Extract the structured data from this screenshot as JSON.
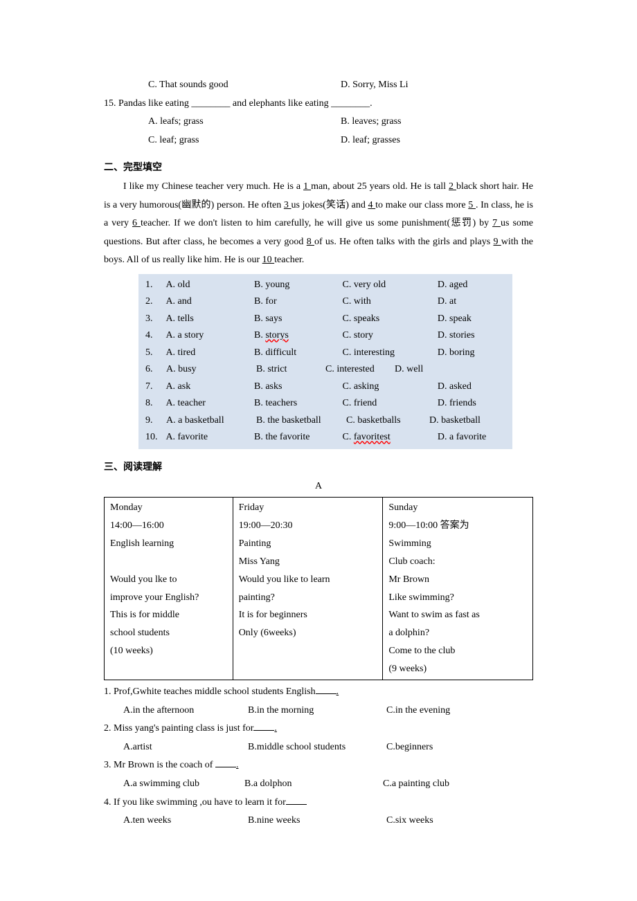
{
  "q14": {
    "c": "C. That sounds good",
    "d": "D. Sorry, Miss Li"
  },
  "q15": {
    "stem": "15. Pandas like eating ________ and elephants like eating ________.",
    "a": "A. leafs; grass",
    "b": "B. leaves; grass",
    "c": "C. leaf; grass",
    "d": "D. leaf; grasses"
  },
  "section2_title": "二、完型填空",
  "cloze_passage": {
    "p1": "I like my Chinese teacher very much. He is a ",
    "b1": "  1  ",
    "p2": " man, about 25 years old. He is tall ",
    "b2": "  2  ",
    "p3": " black short hair. He is a very humorous(幽默的) person. He often ",
    "b3": "3  ",
    "p4": " us jokes(笑话) and ",
    "b4": "  4  ",
    "p5": " to make our class more  ",
    "b5": "  5   ",
    "p6": ". In class, he is a very ",
    "b6": "6  ",
    "p7": " teacher. If we don't listen to him carefully, he will give us some punishment(惩罚) by ",
    "b7": "  7   ",
    "p8": " us some questions. But after class, he becomes a very good ",
    "b8": "   8   ",
    "p9": " of us. He often talks with the girls and plays ",
    "b9": "  9  ",
    "p10": " with the boys. All of us really like him. He is our  ",
    "b10": "  10    ",
    "p11": "  teacher."
  },
  "cloze_opts": [
    {
      "n": "1.",
      "a": "A. old",
      "b": "B. young",
      "c": "C. very old",
      "d": "D. aged"
    },
    {
      "n": "2.",
      "a": "A. and",
      "b": "B. for",
      "c": "C. with",
      "d": "D. at"
    },
    {
      "n": "3.",
      "a": "A. tells",
      "b": "B. says",
      "c": "C. speaks",
      "d": "D. speak"
    },
    {
      "n": "4.",
      "a": "A. a story",
      "b": "B. storys",
      "c": "C. story",
      "d": "D. stories",
      "b_wavy": true
    },
    {
      "n": "5.",
      "a": "A. tired",
      "b": "B. difficult",
      "c": "C. interesting",
      "d": "D. boring"
    },
    {
      "n": "6.",
      "a": "A. busy",
      "b": "B. strict",
      "c": "C. interested",
      "d": "D. well",
      "compact": true
    },
    {
      "n": "7.",
      "a": "A. ask",
      "b": "B. asks",
      "c": "C. asking",
      "d": "D. asked"
    },
    {
      "n": "8.",
      "a": "A. teacher",
      "b": "B. teachers",
      "c": "C. friend",
      "d": "D. friends"
    },
    {
      "n": "9.",
      "a": "A. a basketball",
      "b": "B. the basketball",
      "c": "C. basketballs",
      "d": "D. basketball",
      "tight": true
    },
    {
      "n": "10.",
      "a": "A. favorite",
      "b": "B. the favorite",
      "c": "C. favoritest",
      "d": "D. a favorite",
      "c_wavy": true
    }
  ],
  "section3_title": "三、阅读理解",
  "reading_A_label": "A",
  "tableA": {
    "col1": [
      "Monday",
      "14:00—16:00",
      "English learning",
      "",
      "Would you lke to",
      "improve your English?",
      "This is for middle",
      "school students",
      "(10 weeks)"
    ],
    "col2": [
      "Friday",
      "19:00—20:30",
      "Painting",
      "Miss Yang",
      "Would you like to learn",
      "painting?",
      "It is for beginners",
      "Only (6weeks)",
      ""
    ],
    "col3": [
      "Sunday",
      "9:00—10:00 答案为",
      "Swimming",
      "Club coach:",
      "Mr Brown",
      "Like swimming?",
      "Want to swim as fast as",
      "a dolphin?",
      "Come to the club",
      "(9 weeks)"
    ]
  },
  "readingQ": [
    {
      "stem": "1. Prof,Gwhite teaches middle school students English",
      "tail": ".",
      "a": "A.in the afternoon",
      "b": "B.in the morning",
      "c": "C.in the evening"
    },
    {
      "stem": "2. Miss yang's painting class is just for",
      "tail": ".",
      "a": "A.artist",
      "b": "B.middle school students",
      "c": "C.beginners"
    },
    {
      "stem": "3. Mr Brown is the coach of ",
      "tail": ".",
      "a": "A.a swimming club",
      "b": "B.a dolphon",
      "c": "C.a painting club"
    },
    {
      "stem": "4. If you like swimming ,ou have to learn it for",
      "tail": "",
      "a": "A.ten weeks",
      "b": "B.nine weeks",
      "c": "C.six weeks"
    }
  ]
}
